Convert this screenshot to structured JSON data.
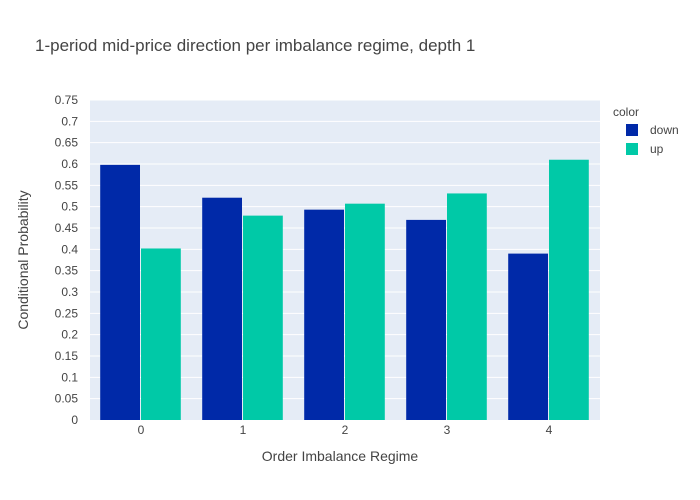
{
  "chart_data": {
    "type": "bar",
    "title": "1-period mid-price direction per imbalance regime, depth 1",
    "xlabel": "Order Imbalance Regime",
    "ylabel": "Conditional Probability",
    "categories": [
      "0",
      "1",
      "2",
      "3",
      "4"
    ],
    "series": [
      {
        "name": "down",
        "color": "#0029a8",
        "values": [
          0.598,
          0.521,
          0.493,
          0.469,
          0.39
        ]
      },
      {
        "name": "up",
        "color": "#00c9a7",
        "values": [
          0.402,
          0.479,
          0.507,
          0.531,
          0.61
        ]
      }
    ],
    "ylim": [
      0,
      0.75
    ],
    "yticks": [
      0,
      0.05,
      0.1,
      0.15,
      0.2,
      0.25,
      0.3,
      0.35,
      0.4,
      0.45,
      0.5,
      0.55,
      0.6,
      0.65,
      0.7,
      0.75
    ],
    "ytick_labels": [
      "0",
      "0.05",
      "0.1",
      "0.15",
      "0.2",
      "0.25",
      "0.3",
      "0.35",
      "0.4",
      "0.45",
      "0.5",
      "0.55",
      "0.6",
      "0.65",
      "0.7",
      "0.75"
    ],
    "legend_title": "color",
    "legend_position": "top-right",
    "grid": true,
    "plot_background": "#e5ecf6"
  }
}
